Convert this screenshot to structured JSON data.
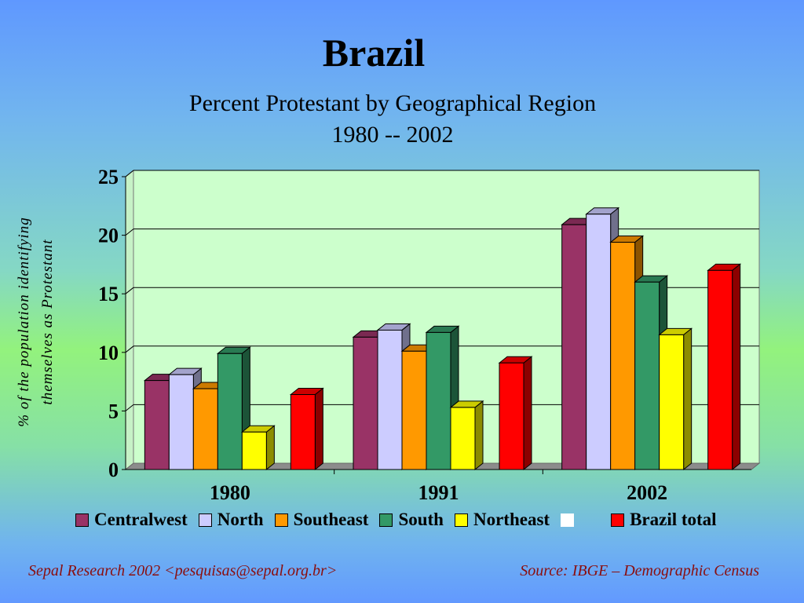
{
  "header": {
    "title": "Brazil",
    "subtitle_line1": "Percent Protestant by Geographical Region",
    "subtitle_line2": "1980 -- 2002"
  },
  "chart_data": {
    "type": "bar",
    "title": "Brazil",
    "subtitle": "Percent Protestant by Geographical Region 1980 -- 2002",
    "ylabel_line1": "% of the population identifying",
    "ylabel_line2": "themselves as Protestant",
    "xlabel": "",
    "categories": [
      "1980",
      "1991",
      "2002"
    ],
    "ylim": [
      0,
      25
    ],
    "yticks": [
      "0",
      "5",
      "10",
      "15",
      "20",
      "25"
    ],
    "grid": true,
    "legend_position": "bottom",
    "series": [
      {
        "name": "Centralwest",
        "color": "#993366",
        "values": [
          7.6,
          11.3,
          20.9
        ]
      },
      {
        "name": "North",
        "color": "#ccccff",
        "values": [
          8.1,
          11.9,
          21.8
        ]
      },
      {
        "name": "Southeast",
        "color": "#ff9900",
        "values": [
          6.9,
          10.1,
          19.4
        ]
      },
      {
        "name": "South",
        "color": "#339966",
        "values": [
          9.9,
          11.7,
          16.0
        ]
      },
      {
        "name": "Northeast",
        "color": "#ffff00",
        "values": [
          3.2,
          5.3,
          11.5
        ]
      },
      {
        "name": "",
        "color": "#ffffff",
        "values": [
          null,
          null,
          null
        ]
      },
      {
        "name": "Brazil total",
        "color": "#ff0000",
        "values": [
          6.4,
          9.1,
          17.0
        ]
      }
    ]
  },
  "footer": {
    "left": "Sepal Research 2002 <pesquisas@sepal.org.br>",
    "right": "Source: IBGE – Demographic Census"
  }
}
